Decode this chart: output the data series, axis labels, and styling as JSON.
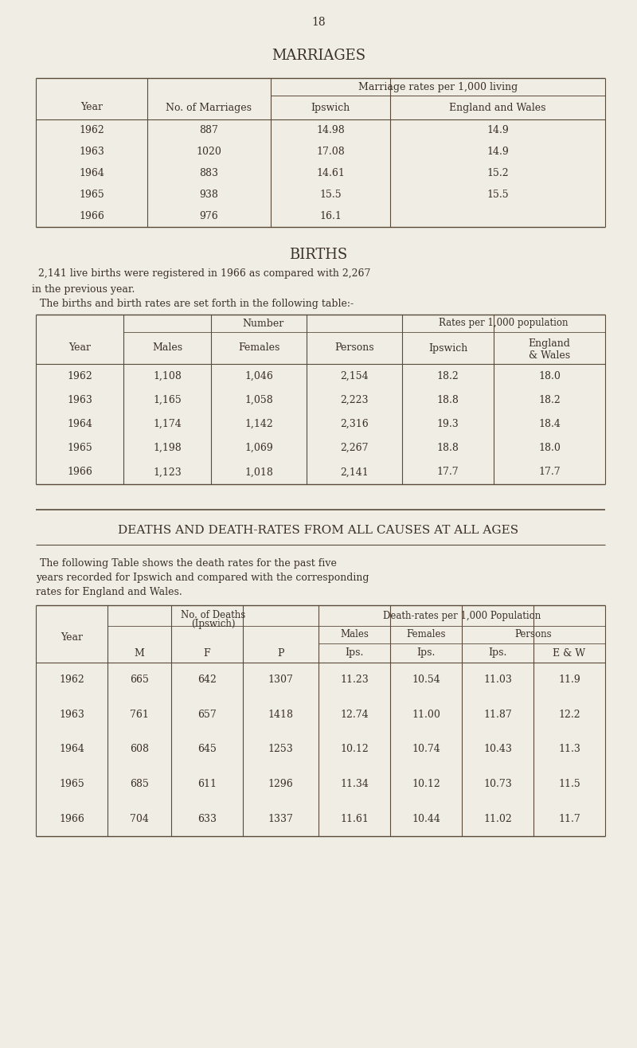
{
  "page_number": "18",
  "bg_color": "#f0ede4",
  "text_color": "#3a3028",
  "section1_title": "MARRIAGES",
  "marriages_subheader": "Marriage rates per 1,000 living",
  "marriages_data": [
    [
      "1962",
      "887",
      "14.98",
      "14.9"
    ],
    [
      "1963",
      "1020",
      "17.08",
      "14.9"
    ],
    [
      "1964",
      "883",
      "14.61",
      "15.2"
    ],
    [
      "1965",
      "938",
      "15.5",
      "15.5"
    ],
    [
      "1966",
      "976",
      "16.1",
      ""
    ]
  ],
  "section2_title": "BIRTHS",
  "births_text1": "2,141 live births were registered in 1966 as compared with 2,267",
  "births_text2": "in the previous year.",
  "births_text3": "The births and birth rates are set forth in the following table:-",
  "births_data": [
    [
      "1962",
      "1,108",
      "1,046",
      "2,154",
      "18.2",
      "18.0"
    ],
    [
      "1963",
      "1,165",
      "1,058",
      "2,223",
      "18.8",
      "18.2"
    ],
    [
      "1964",
      "1,174",
      "1,142",
      "2,316",
      "19.3",
      "18.4"
    ],
    [
      "1965",
      "1,198",
      "1,069",
      "2,267",
      "18.8",
      "18.0"
    ],
    [
      "1966",
      "1,123",
      "1,018",
      "2,141",
      "17.7",
      "17.7"
    ]
  ],
  "section3_title": "DEATHS AND DEATH-RATES FROM ALL CAUSES AT ALL AGES",
  "deaths_text1": "The following Table shows the death rates for the past five",
  "deaths_text2": "years recorded for Ipswich and compared with the corresponding",
  "deaths_text3": "rates for England and Wales.",
  "deaths_data": [
    [
      "1962",
      "665",
      "642",
      "1307",
      "11.23",
      "10.54",
      "11.03",
      "11.9"
    ],
    [
      "1963",
      "761",
      "657",
      "1418",
      "12.74",
      "11.00",
      "11.87",
      "12.2"
    ],
    [
      "1964",
      "608",
      "645",
      "1253",
      "10.12",
      "10.74",
      "10.43",
      "11.3"
    ],
    [
      "1965",
      "685",
      "611",
      "1296",
      "11.34",
      "10.12",
      "10.73",
      "11.5"
    ],
    [
      "1966",
      "704",
      "633",
      "1337",
      "11.61",
      "10.44",
      "11.02",
      "11.7"
    ]
  ]
}
